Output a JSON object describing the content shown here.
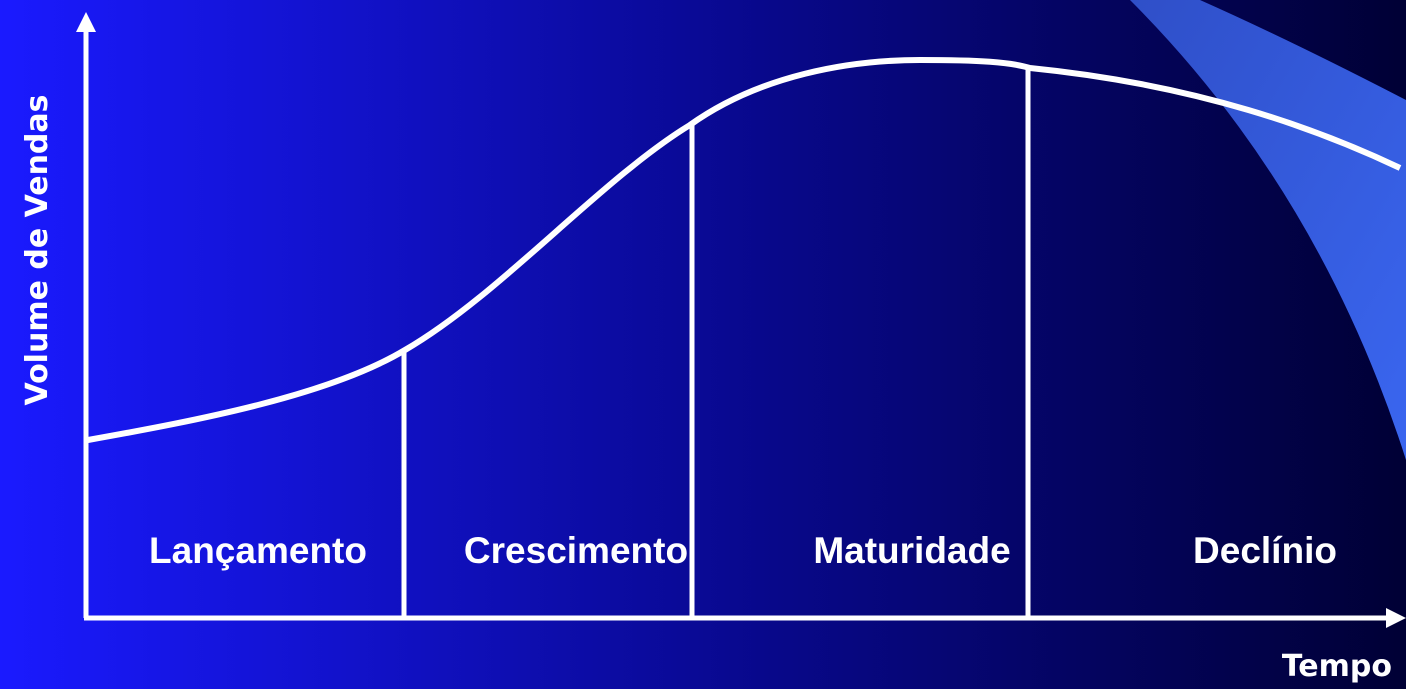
{
  "axes": {
    "y_label": "Volume de Vendas",
    "x_label": "Tempo"
  },
  "stages": [
    "Lançamento",
    "Crescimento",
    "Maturidade",
    "Declínio"
  ]
}
